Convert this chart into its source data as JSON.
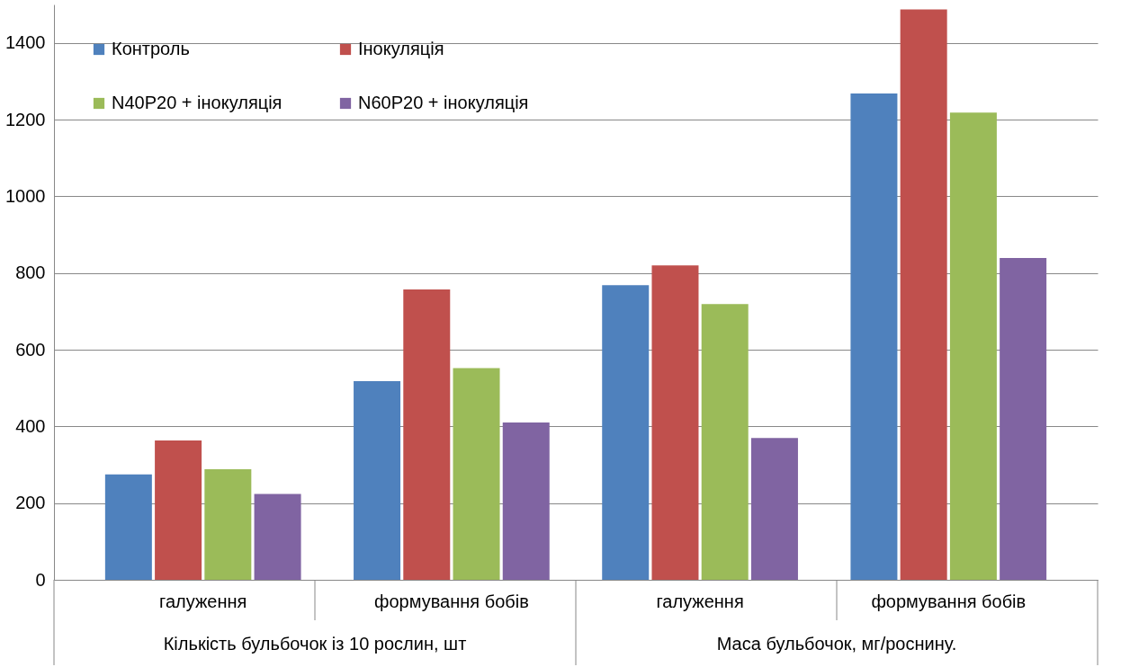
{
  "chart_data": {
    "type": "bar",
    "categories": [
      "галуження",
      "формування бобів",
      "галуження",
      "формування бобів"
    ],
    "series": [
      {
        "name": "Контроль",
        "color": "#4f81bd",
        "values": [
          275,
          518,
          768,
          1268
        ]
      },
      {
        "name": "Інокуляція",
        "color": "#c0504d",
        "values": [
          363,
          757,
          820,
          1487
        ]
      },
      {
        "name": "N40P20 + інокуляція",
        "color": "#9bbb59",
        "values": [
          288,
          552,
          719,
          1218
        ]
      },
      {
        "name": "N60P20 + інокуляція",
        "color": "#8064a2",
        "values": [
          224,
          410,
          370,
          839
        ]
      }
    ],
    "ylim": [
      0,
      1500
    ],
    "yticks": [
      0,
      200,
      400,
      600,
      800,
      1000,
      1200,
      1400
    ],
    "grid": "y",
    "legend": "top left",
    "annotations": [
      "Кількість бульбочок із 10 рослин, шт",
      "Маса бульбочок, мг/роснину."
    ]
  }
}
